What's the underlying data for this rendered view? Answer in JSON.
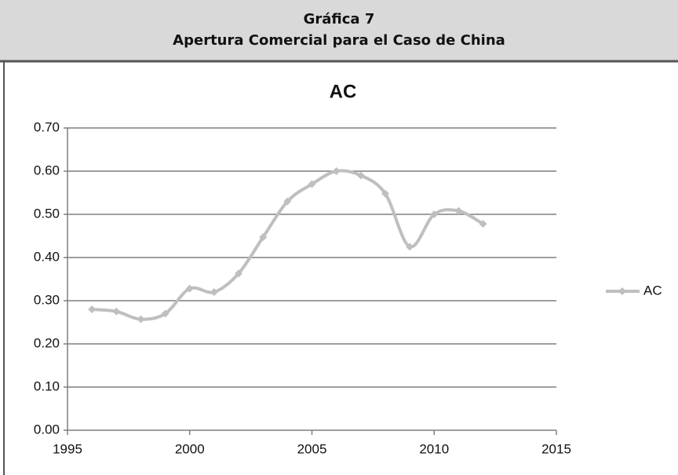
{
  "header": {
    "title": "Gráfica 7",
    "subtitle": "Apertura Comercial para el Caso de China"
  },
  "chart_data": {
    "type": "line",
    "title": "AC",
    "x": [
      1996,
      1997,
      1998,
      1999,
      2000,
      2001,
      2002,
      2003,
      2004,
      2005,
      2006,
      2007,
      2008,
      2009,
      2010,
      2011,
      2012
    ],
    "series": [
      {
        "name": "AC",
        "color": "#bfbfbf",
        "values": [
          0.28,
          0.275,
          0.257,
          0.27,
          0.328,
          0.32,
          0.363,
          0.447,
          0.53,
          0.57,
          0.6,
          0.59,
          0.548,
          0.425,
          0.5,
          0.508,
          0.478
        ]
      }
    ],
    "xlim": [
      1995,
      2015
    ],
    "xticks": [
      1995,
      2000,
      2005,
      2010,
      2015
    ],
    "ylim": [
      0,
      0.7
    ],
    "yticks": [
      {
        "value": 0,
        "label": "0.00"
      },
      {
        "value": 0.1,
        "label": "0.10"
      },
      {
        "value": 0.2,
        "label": "0.20"
      },
      {
        "value": 0.3,
        "label": "0.30"
      },
      {
        "value": 0.4,
        "label": "0.40"
      },
      {
        "value": 0.5,
        "label": "0.50"
      },
      {
        "value": 0.6,
        "label": "0.60"
      },
      {
        "value": 0.7,
        "label": "0.70"
      }
    ],
    "grid": true,
    "smooth": true,
    "legend": "right"
  }
}
